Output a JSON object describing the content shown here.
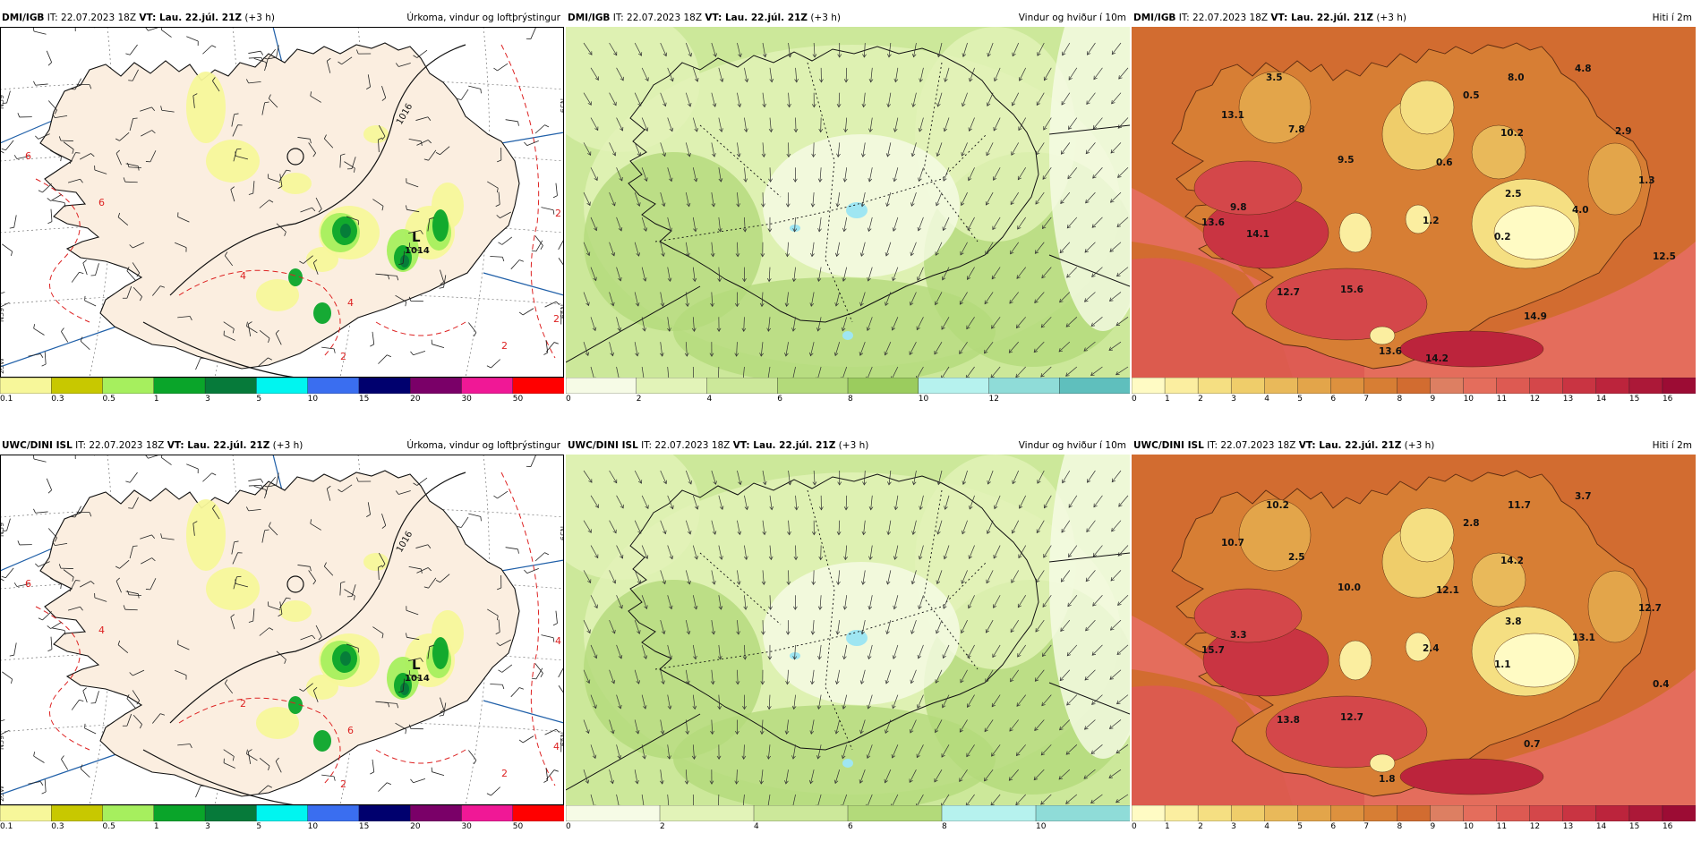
{
  "panels": [
    {
      "id": "dmi-precip",
      "model": "DMI/IGB",
      "it": "IT: 22.07.2023 18Z",
      "vt": "VT: Lau. 22.júl. 21Z",
      "lead": "(+3 h)",
      "field": "Úrkoma, vindur og loftþrýstingur",
      "map_type": "precip",
      "pressure_low_label": "L",
      "pressure_low_value": "1014",
      "isobar_label": "1016",
      "temp_labels": [
        "6",
        "2",
        "2",
        "4",
        "2",
        "6",
        "4",
        "2"
      ],
      "coord_labels": [
        "N59",
        "N59",
        "N59",
        "N59",
        "25W"
      ],
      "legend_ticks": [
        "0.1",
        "0.3",
        "0.5",
        "1",
        "3",
        "5",
        "10",
        "15",
        "20",
        "30",
        "50"
      ],
      "legend_colors": [
        "#f7f79a",
        "#c8c800",
        "#a6ef5e",
        "#0aa52a",
        "#067a3a",
        "#00f5f0",
        "#3a6ef0",
        "#00006e",
        "#7a0068",
        "#f01896",
        "#ff0000"
      ]
    },
    {
      "id": "dmi-wind",
      "model": "DMI/IGB",
      "it": "IT: 22.07.2023 18Z",
      "vt": "VT: Lau. 22.júl. 21Z",
      "lead": "(+3 h)",
      "field": "Vindur og hviður í 10m",
      "map_type": "wind",
      "legend_ticks": [
        "0",
        "2",
        "4",
        "6",
        "8",
        "10",
        "12"
      ],
      "legend_colors": [
        "#f6fbe6",
        "#e2f3b8",
        "#cce89a",
        "#b3da7a",
        "#9bcc5e",
        "#b6f2ee",
        "#8fdcd8",
        "#5fbfbd"
      ]
    },
    {
      "id": "dmi-temp",
      "model": "DMI/IGB",
      "it": "IT: 22.07.2023 18Z",
      "vt": "VT: Lau. 22.júl. 21Z",
      "lead": "(+3 h)",
      "field": "Hiti í 2m",
      "map_type": "temp",
      "temp_values": [
        "3.5",
        "8.0",
        "4.8",
        "13.1",
        "7.8",
        "0.5",
        "10.2",
        "2.9",
        "9.5",
        "0.6",
        "1.3",
        "2.5",
        "9.8",
        "4.0",
        "13.6",
        "14.1",
        "1.2",
        "0.2",
        "12.5",
        "12.7",
        "15.6",
        "14.9",
        "13.6",
        "14.2"
      ],
      "legend_ticks": [
        "0",
        "1",
        "2",
        "3",
        "4",
        "5",
        "6",
        "7",
        "8",
        "9",
        "10",
        "11",
        "12",
        "13",
        "14",
        "15",
        "16"
      ],
      "legend_colors": [
        "#fffbc4",
        "#fbeea0",
        "#f5df82",
        "#efcd6a",
        "#e9b95a",
        "#e3a54a",
        "#dd913e",
        "#d77e34",
        "#d26c30",
        "#dd7f62",
        "#e46d5c",
        "#dd5a52",
        "#d4474a",
        "#c93442",
        "#bc243c",
        "#ac1838",
        "#9c0c34"
      ]
    },
    {
      "id": "uwc-precip",
      "model": "UWC/DINI ISL",
      "it": "IT: 22.07.2023 18Z",
      "vt": "VT: Lau. 22.júl. 21Z",
      "lead": "(+3 h)",
      "field": "Úrkoma, vindur og loftþrýstingur",
      "map_type": "precip",
      "pressure_low_label": "L",
      "pressure_low_value": "1014",
      "isobar_label": "1016",
      "temp_labels": [
        "6",
        "4",
        "4",
        "2",
        "2",
        "4",
        "6",
        "2"
      ],
      "coord_labels": [
        "N59",
        "N59",
        "N59",
        "N59",
        "25W"
      ],
      "legend_ticks": [
        "0.1",
        "0.3",
        "0.5",
        "1",
        "3",
        "5",
        "10",
        "15",
        "20",
        "30",
        "50"
      ],
      "legend_colors": [
        "#f7f79a",
        "#c8c800",
        "#a6ef5e",
        "#0aa52a",
        "#067a3a",
        "#00f5f0",
        "#3a6ef0",
        "#00006e",
        "#7a0068",
        "#f01896",
        "#ff0000"
      ]
    },
    {
      "id": "uwc-wind",
      "model": "UWC/DINI ISL",
      "it": "IT: 22.07.2023 18Z",
      "vt": "VT: Lau. 22.júl. 21Z",
      "lead": "(+3 h)",
      "field": "Vindur og hviður í 10m",
      "map_type": "wind",
      "legend_ticks": [
        "0",
        "2",
        "4",
        "6",
        "8",
        "10"
      ],
      "legend_colors": [
        "#f6fbe6",
        "#e2f3b8",
        "#cce89a",
        "#b3da7a",
        "#b6f2ee",
        "#8fdcd8"
      ]
    },
    {
      "id": "uwc-temp",
      "model": "UWC/DINI ISL",
      "it": "IT: 22.07.2023 18Z",
      "vt": "VT: Lau. 22.júl. 21Z",
      "lead": "(+3 h)",
      "field": "Hiti í 2m",
      "map_type": "temp",
      "temp_values": [
        "10.2",
        "11.7",
        "3.7",
        "10.7",
        "2.5",
        "2.8",
        "14.2",
        "10.0",
        "12.1",
        "12.7",
        "3.8",
        "3.3",
        "13.1",
        "15.7",
        "2.4",
        "1.1",
        "0.4",
        "13.8",
        "12.7",
        "0.7",
        "1.8"
      ],
      "legend_ticks": [
        "0",
        "1",
        "2",
        "3",
        "4",
        "5",
        "6",
        "7",
        "8",
        "9",
        "10",
        "11",
        "12",
        "13",
        "14",
        "15",
        "16"
      ],
      "legend_colors": [
        "#fffbc4",
        "#fbeea0",
        "#f5df82",
        "#efcd6a",
        "#e9b95a",
        "#e3a54a",
        "#dd913e",
        "#d77e34",
        "#d26c30",
        "#dd7f62",
        "#e46d5c",
        "#dd5a52",
        "#d4474a",
        "#c93442",
        "#bc243c",
        "#ac1838",
        "#9c0c34"
      ]
    }
  ]
}
